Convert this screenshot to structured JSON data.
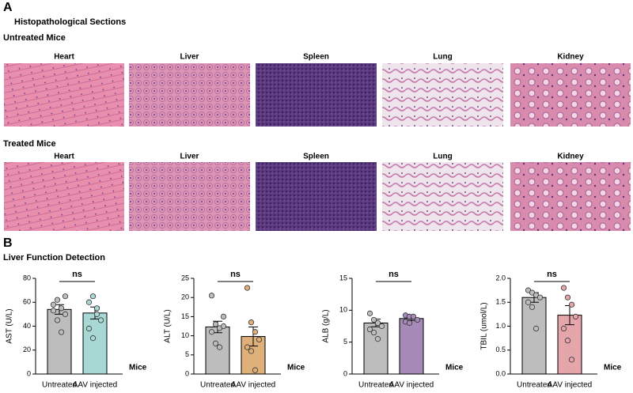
{
  "panel_a": {
    "label": "A",
    "title": "Histopathological Sections",
    "groups": [
      {
        "title": "Untreated Mice",
        "organs": [
          "Heart",
          "Liver",
          "Spleen",
          "Lung",
          "Kidney"
        ]
      },
      {
        "title": "Treated Mice",
        "organs": [
          "Heart",
          "Liver",
          "Spleen",
          "Lung",
          "Kidney"
        ]
      }
    ]
  },
  "panel_b": {
    "label": "B",
    "title": "Liver Function Detection"
  },
  "chart_data": [
    {
      "type": "bar",
      "ylabel": "AST (U/L)",
      "xlabel": "Mice",
      "annotation": "ns",
      "categories": [
        "Untreated",
        "AAV injected"
      ],
      "values": [
        54,
        51
      ],
      "errors": [
        4,
        5
      ],
      "colors": [
        "#bdbdbd",
        "#a8d8d4"
      ],
      "points": [
        [
          58,
          62,
          55,
          50,
          53,
          45,
          35,
          65
        ],
        [
          60,
          65,
          55,
          45,
          38,
          30,
          50
        ]
      ],
      "ylim": [
        0,
        80
      ],
      "yticks": [
        0,
        20,
        40,
        60,
        80
      ]
    },
    {
      "type": "bar",
      "ylabel": "ALT (U/L)",
      "xlabel": "Mice",
      "annotation": "ns",
      "categories": [
        "Untreated",
        "AAV injected"
      ],
      "values": [
        12.3,
        9.8
      ],
      "errors": [
        1.5,
        2.5
      ],
      "colors": [
        "#bdbdbd",
        "#e0b07a"
      ],
      "points": [
        [
          20.5,
          13,
          12,
          12.5,
          11,
          8,
          7,
          15
        ],
        [
          22.5,
          13.5,
          11,
          9,
          7,
          6,
          1
        ]
      ],
      "ylim": [
        0,
        25
      ],
      "yticks": [
        0,
        5,
        10,
        15,
        20,
        25
      ]
    },
    {
      "type": "bar",
      "ylabel": "ALB (g/L)",
      "xlabel": "Mice",
      "annotation": "ns",
      "categories": [
        "Untreated",
        "AAV injected"
      ],
      "values": [
        8,
        8.7
      ],
      "errors": [
        0.6,
        0.3
      ],
      "colors": [
        "#bdbdbd",
        "#a68bb8"
      ],
      "points": [
        [
          9.5,
          8.5,
          8,
          7.5,
          7,
          6.5,
          5.5
        ],
        [
          9.2,
          9,
          8.8,
          8.5,
          8.2,
          8,
          9
        ]
      ],
      "ylim": [
        0,
        15
      ],
      "yticks": [
        0,
        5,
        10,
        15
      ]
    },
    {
      "type": "bar",
      "ylabel": "TBIL (umol/L)",
      "xlabel": "Mice",
      "annotation": "ns",
      "categories": [
        "Untreated",
        "AAV injected"
      ],
      "values": [
        1.6,
        1.23
      ],
      "errors": [
        0.1,
        0.2
      ],
      "colors": [
        "#bdbdbd",
        "#e4a5ab"
      ],
      "points": [
        [
          1.75,
          1.7,
          1.65,
          1.6,
          1.5,
          1.4,
          0.95
        ],
        [
          1.8,
          1.6,
          1.45,
          1.2,
          0.95,
          0.7,
          0.3
        ]
      ],
      "ylim": [
        0,
        2
      ],
      "yticks": [
        {
          "value": 0,
          "label": "0.0"
        },
        0.5,
        {
          "value": 1,
          "label": "1.0"
        },
        1.5,
        {
          "value": 2,
          "label": "2.0"
        }
      ]
    }
  ]
}
